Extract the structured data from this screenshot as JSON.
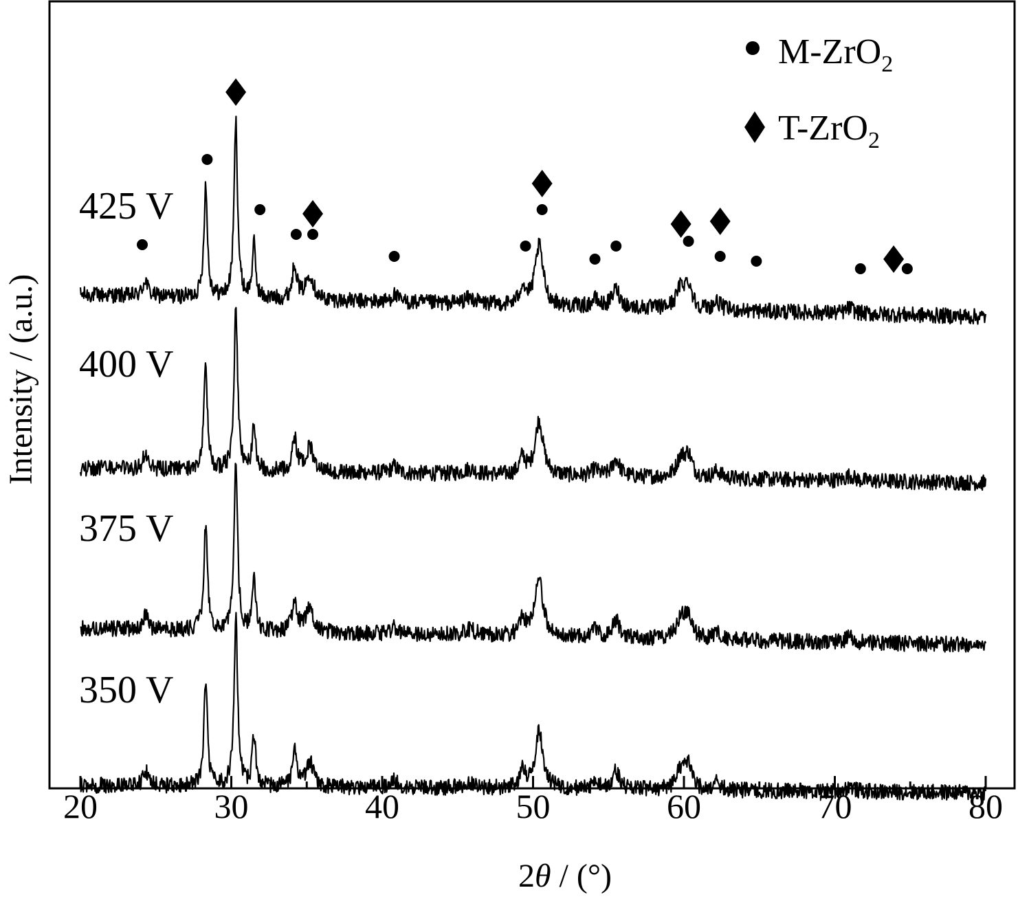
{
  "chart_data": {
    "type": "line",
    "xlabel": "2θ / (°)",
    "xlabel_parts": {
      "two": "2",
      "theta": "θ",
      "rest": " / (°)"
    },
    "ylabel": "Intensity / (a.u.)",
    "xlim": [
      20,
      80
    ],
    "xticks": [
      20,
      30,
      40,
      50,
      60,
      70,
      80
    ],
    "x_minor_step": 5,
    "grid": false,
    "legend_position": "top-right",
    "legend": [
      {
        "marker": "circle",
        "base": "M-ZrO",
        "sub": "2"
      },
      {
        "marker": "diamond",
        "base": "T-ZrO",
        "sub": "2"
      }
    ],
    "peaks": [
      {
        "pos": 24.3,
        "h": 0.09,
        "w": 0.18
      },
      {
        "pos": 28.3,
        "h": 0.6,
        "w": 0.14
      },
      {
        "pos": 30.3,
        "h": 0.95,
        "w": 0.14
      },
      {
        "pos": 31.5,
        "h": 0.29,
        "w": 0.13
      },
      {
        "pos": 34.2,
        "h": 0.19,
        "w": 0.18
      },
      {
        "pos": 35.2,
        "h": 0.14,
        "w": 0.3
      },
      {
        "pos": 40.8,
        "h": 0.04,
        "w": 0.25
      },
      {
        "pos": 45.8,
        "h": 0.03,
        "w": 0.5
      },
      {
        "pos": 49.3,
        "h": 0.1,
        "w": 0.22
      },
      {
        "pos": 50.4,
        "h": 0.32,
        "w": 0.32
      },
      {
        "pos": 54.1,
        "h": 0.04,
        "w": 0.25
      },
      {
        "pos": 55.5,
        "h": 0.1,
        "w": 0.3
      },
      {
        "pos": 59.8,
        "h": 0.11,
        "w": 0.35
      },
      {
        "pos": 60.3,
        "h": 0.12,
        "w": 0.28
      },
      {
        "pos": 62.2,
        "h": 0.04,
        "w": 0.3
      },
      {
        "pos": 71.0,
        "h": 0.03,
        "w": 0.3
      }
    ],
    "series": [
      {
        "name": "425 V",
        "scale": 1.0,
        "base_start": 0.42,
        "base_end": 0.3
      },
      {
        "name": "400 V",
        "scale": 0.92,
        "base_start": 0.3,
        "base_end": 0.22
      },
      {
        "name": "375 V",
        "scale": 0.95,
        "base_start": 0.3,
        "base_end": 0.21
      },
      {
        "name": "350 V",
        "scale": 0.95,
        "base_start": 0.25,
        "base_end": 0.21
      }
    ],
    "markers": [
      {
        "type": "circle",
        "x": 24.1
      },
      {
        "type": "circle",
        "x": 28.4
      },
      {
        "type": "diamond",
        "x": 30.3
      },
      {
        "type": "circle",
        "x": 31.9
      },
      {
        "type": "circle",
        "x": 34.3
      },
      {
        "type": "circle",
        "x": 35.4
      },
      {
        "type": "diamond",
        "x": 35.4
      },
      {
        "type": "circle",
        "x": 40.8
      },
      {
        "type": "circle",
        "x": 49.5
      },
      {
        "type": "diamond",
        "x": 50.6
      },
      {
        "type": "circle",
        "x": 50.6
      },
      {
        "type": "circle",
        "x": 54.1
      },
      {
        "type": "circle",
        "x": 55.5
      },
      {
        "type": "diamond",
        "x": 59.8
      },
      {
        "type": "circle",
        "x": 60.3
      },
      {
        "type": "diamond",
        "x": 62.4
      },
      {
        "type": "circle",
        "x": 62.4
      },
      {
        "type": "circle",
        "x": 64.8
      },
      {
        "type": "circle",
        "x": 71.7
      },
      {
        "type": "diamond",
        "x": 73.9
      },
      {
        "type": "circle",
        "x": 74.8
      }
    ]
  }
}
